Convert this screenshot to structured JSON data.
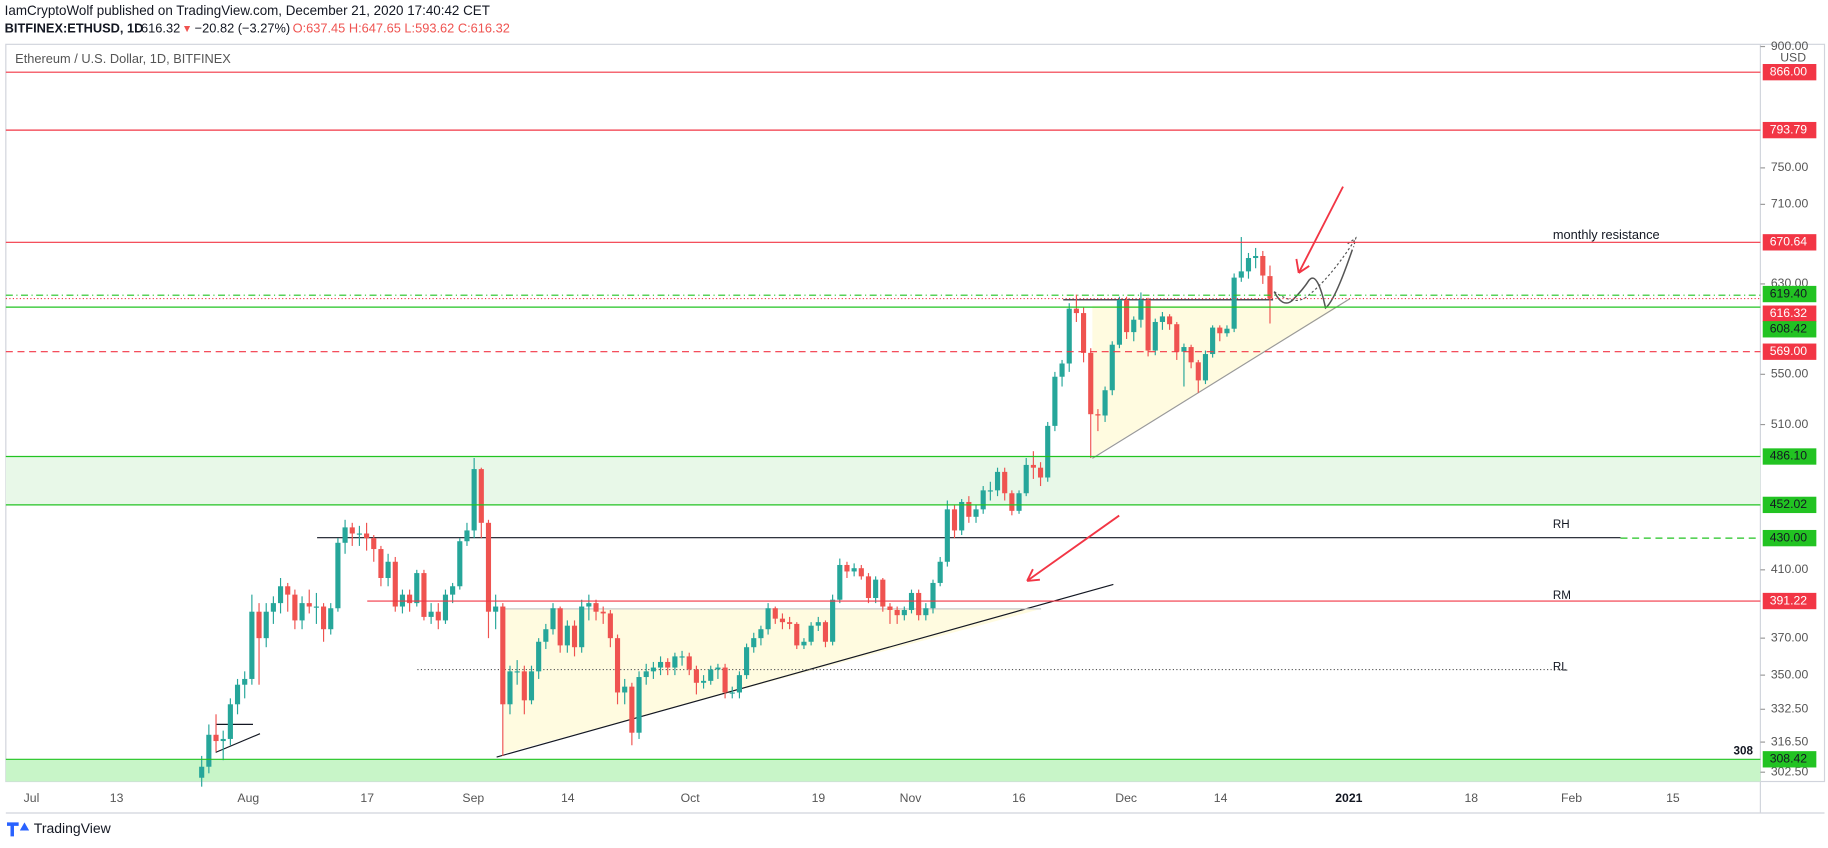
{
  "header": {
    "line1": "IamCryptoWolf published on TradingView.com, December 21, 2020 17:40:42 CET",
    "symbol": "BITFINEX:ETHUSD, 1D",
    "price": "616.32",
    "arrow": "▼",
    "change": "−20.82 (−3.27%)",
    "ohlc": "O:637.45 H:647.65 L:593.62 C:616.32"
  },
  "footer": {
    "brand": "TradingView"
  },
  "chart_data": {
    "type": "candlestick",
    "title": "Ethereum / U.S. Dollar, 1D, BITFINEX",
    "currency": "USD",
    "log": true,
    "up_color": "#26a69a",
    "down_color": "#ef5350",
    "ylim": [
      298.3,
      903
    ],
    "yticks": [
      {
        "value": 900,
        "label": "900.00"
      },
      {
        "value": 750,
        "label": "750.00"
      },
      {
        "value": 710,
        "label": "710.00"
      },
      {
        "value": 630,
        "label": "630.00"
      },
      {
        "value": 550,
        "label": "550.00"
      },
      {
        "value": 510,
        "label": "510.00"
      },
      {
        "value": 410,
        "label": "410.00"
      },
      {
        "value": 370,
        "label": "370.00"
      },
      {
        "value": 350,
        "label": "350.00"
      },
      {
        "value": 332.5,
        "label": "332.50"
      },
      {
        "value": 316.5,
        "label": "316.50"
      },
      {
        "value": 302.5,
        "label": "302.50"
      }
    ],
    "xticks": [
      "Jul",
      "13",
      "Aug",
      "17",
      "Sep",
      "14",
      "Oct",
      "19",
      "Nov",
      "16",
      "Dec",
      "14",
      "2021",
      "18",
      "Feb",
      "15"
    ],
    "levels": [
      {
        "value": 866,
        "label": "866.00",
        "color": "#f23645",
        "style": "solid"
      },
      {
        "value": 793.79,
        "label": "793.79",
        "color": "#f23645",
        "style": "solid"
      },
      {
        "value": 670.64,
        "label": "670.64",
        "color": "#f23645",
        "style": "solid"
      },
      {
        "value": 619.4,
        "label": "619.40",
        "color": "#22c322",
        "style": "dashdot"
      },
      {
        "value": 616.32,
        "label": "616.32",
        "color": "#f23645",
        "style": "dotted"
      },
      {
        "value": 608.42,
        "label": "608.42",
        "color": "#22c322",
        "style": "solid"
      },
      {
        "value": 569,
        "label": "569.00",
        "color": "#f23645",
        "style": "dashed"
      },
      {
        "value": 486.1,
        "label": "486.10",
        "color": "#22c322",
        "style": "solid"
      },
      {
        "value": 452.02,
        "label": "452.02",
        "color": "#22c322",
        "style": "solid"
      },
      {
        "value": 430,
        "label": "430.00",
        "color": "#22c322",
        "style": "dashed"
      },
      {
        "value": 391.22,
        "label": "391.22",
        "color": "#f23645",
        "style": "solid"
      },
      {
        "value": 308.42,
        "label": "308.42",
        "color": "#22c322",
        "style": "solid"
      }
    ],
    "annotations": [
      "monthly resistance",
      "RH",
      "RM",
      "RL",
      "308"
    ],
    "ohlc": [
      [
        300,
        310,
        296,
        305
      ],
      [
        305,
        325,
        302,
        320
      ],
      [
        320,
        330,
        312,
        317
      ],
      [
        317,
        322,
        308,
        318
      ],
      [
        318,
        338,
        315,
        335
      ],
      [
        335,
        348,
        330,
        345
      ],
      [
        345,
        352,
        338,
        348
      ],
      [
        348,
        395,
        345,
        385
      ],
      [
        385,
        390,
        345,
        370
      ],
      [
        370,
        390,
        365,
        385
      ],
      [
        385,
        394,
        378,
        390
      ],
      [
        390,
        405,
        384,
        400
      ],
      [
        400,
        402,
        385,
        395
      ],
      [
        395,
        398,
        375,
        380
      ],
      [
        380,
        394,
        375,
        390
      ],
      [
        390,
        398,
        384,
        388
      ],
      [
        388,
        396,
        378,
        388
      ],
      [
        388,
        390,
        368,
        375
      ],
      [
        375,
        390,
        372,
        387
      ],
      [
        387,
        430,
        385,
        427
      ],
      [
        427,
        442,
        420,
        437
      ],
      [
        437,
        440,
        425,
        433
      ],
      [
        433,
        438,
        425,
        433
      ],
      [
        433,
        440,
        422,
        430
      ],
      [
        430,
        432,
        415,
        423
      ],
      [
        423,
        425,
        400,
        405
      ],
      [
        405,
        420,
        400,
        415
      ],
      [
        415,
        418,
        385,
        388
      ],
      [
        388,
        398,
        384,
        395
      ],
      [
        395,
        398,
        385,
        390
      ],
      [
        390,
        410,
        388,
        408
      ],
      [
        408,
        410,
        380,
        382
      ],
      [
        382,
        390,
        378,
        385
      ],
      [
        385,
        390,
        375,
        380
      ],
      [
        380,
        398,
        378,
        395
      ],
      [
        395,
        402,
        390,
        400
      ],
      [
        400,
        430,
        398,
        428
      ],
      [
        428,
        440,
        425,
        435
      ],
      [
        435,
        485,
        430,
        477
      ],
      [
        477,
        478,
        430,
        440
      ],
      [
        440,
        442,
        370,
        385
      ],
      [
        385,
        395,
        375,
        388
      ],
      [
        388,
        390,
        310,
        335
      ],
      [
        335,
        355,
        330,
        352
      ],
      [
        352,
        358,
        345,
        352
      ],
      [
        352,
        355,
        330,
        337
      ],
      [
        337,
        355,
        335,
        352
      ],
      [
        352,
        370,
        348,
        368
      ],
      [
        368,
        378,
        364,
        375
      ],
      [
        375,
        390,
        372,
        387
      ],
      [
        387,
        388,
        362,
        366
      ],
      [
        366,
        380,
        362,
        377
      ],
      [
        377,
        380,
        360,
        365
      ],
      [
        365,
        392,
        362,
        388
      ],
      [
        388,
        395,
        380,
        390
      ],
      [
        390,
        392,
        380,
        385
      ],
      [
        385,
        388,
        378,
        384
      ],
      [
        384,
        386,
        365,
        370
      ],
      [
        370,
        372,
        335,
        341
      ],
      [
        341,
        348,
        335,
        344
      ],
      [
        344,
        346,
        315,
        321
      ],
      [
        321,
        352,
        318,
        349
      ],
      [
        349,
        356,
        345,
        352
      ],
      [
        352,
        357,
        348,
        354
      ],
      [
        354,
        360,
        350,
        357
      ],
      [
        357,
        359,
        350,
        354
      ],
      [
        354,
        362,
        350,
        360
      ],
      [
        360,
        363,
        355,
        360
      ],
      [
        360,
        362,
        350,
        353
      ],
      [
        353,
        355,
        340,
        346
      ],
      [
        346,
        350,
        343,
        347
      ],
      [
        347,
        355,
        345,
        353
      ],
      [
        353,
        356,
        348,
        354
      ],
      [
        354,
        356,
        338,
        341
      ],
      [
        341,
        344,
        338,
        341
      ],
      [
        341,
        352,
        338,
        350
      ],
      [
        350,
        367,
        348,
        365
      ],
      [
        365,
        373,
        362,
        370
      ],
      [
        370,
        377,
        366,
        375
      ],
      [
        375,
        390,
        372,
        387
      ],
      [
        387,
        388,
        378,
        381
      ],
      [
        381,
        384,
        375,
        379
      ],
      [
        379,
        382,
        375,
        378
      ],
      [
        378,
        379,
        364,
        366
      ],
      [
        366,
        370,
        364,
        368
      ],
      [
        368,
        379,
        366,
        377
      ],
      [
        377,
        382,
        374,
        379
      ],
      [
        379,
        380,
        365,
        368
      ],
      [
        368,
        395,
        366,
        392
      ],
      [
        392,
        417,
        390,
        413
      ],
      [
        413,
        415,
        405,
        409
      ],
      [
        409,
        414,
        406,
        411
      ],
      [
        411,
        413,
        404,
        406
      ],
      [
        406,
        408,
        390,
        393
      ],
      [
        393,
        406,
        390,
        404
      ],
      [
        404,
        405,
        385,
        388
      ],
      [
        388,
        390,
        378,
        386
      ],
      [
        386,
        388,
        378,
        383
      ],
      [
        383,
        388,
        380,
        386
      ],
      [
        386,
        398,
        384,
        396
      ],
      [
        396,
        398,
        380,
        383
      ],
      [
        383,
        390,
        380,
        387
      ],
      [
        387,
        404,
        384,
        402
      ],
      [
        402,
        418,
        400,
        415
      ],
      [
        415,
        455,
        412,
        449
      ],
      [
        449,
        452,
        430,
        435
      ],
      [
        435,
        456,
        432,
        454
      ],
      [
        454,
        458,
        440,
        444
      ],
      [
        444,
        452,
        440,
        449
      ],
      [
        449,
        465,
        446,
        462
      ],
      [
        462,
        468,
        455,
        462
      ],
      [
        462,
        478,
        458,
        475
      ],
      [
        475,
        478,
        455,
        460
      ],
      [
        460,
        462,
        445,
        448
      ],
      [
        448,
        462,
        446,
        460
      ],
      [
        460,
        485,
        458,
        480
      ],
      [
        480,
        490,
        470,
        478
      ],
      [
        478,
        482,
        465,
        471
      ],
      [
        471,
        512,
        468,
        509
      ],
      [
        509,
        552,
        505,
        548
      ],
      [
        548,
        562,
        540,
        559
      ],
      [
        559,
        612,
        552,
        607
      ],
      [
        607,
        620,
        595,
        603
      ],
      [
        603,
        608,
        560,
        568
      ],
      [
        568,
        572,
        485,
        518
      ],
      [
        518,
        522,
        505,
        517
      ],
      [
        517,
        540,
        512,
        537
      ],
      [
        537,
        578,
        533,
        575
      ],
      [
        575,
        618,
        572,
        615
      ],
      [
        615,
        618,
        580,
        586
      ],
      [
        586,
        600,
        578,
        597
      ],
      [
        597,
        622,
        590,
        615
      ],
      [
        615,
        617,
        565,
        570
      ],
      [
        570,
        598,
        566,
        595
      ],
      [
        595,
        604,
        588,
        600
      ],
      [
        600,
        602,
        588,
        593
      ],
      [
        593,
        595,
        562,
        569
      ],
      [
        569,
        576,
        540,
        573
      ],
      [
        573,
        575,
        555,
        560
      ],
      [
        560,
        562,
        535,
        545
      ],
      [
        545,
        570,
        542,
        567
      ],
      [
        567,
        592,
        564,
        590
      ],
      [
        590,
        592,
        578,
        585
      ],
      [
        585,
        592,
        582,
        589
      ],
      [
        589,
        640,
        586,
        636
      ],
      [
        636,
        676,
        632,
        642
      ],
      [
        642,
        660,
        635,
        655
      ],
      [
        655,
        665,
        645,
        657
      ],
      [
        657,
        662,
        630,
        638
      ],
      [
        637.45,
        647.65,
        593.62,
        616.32
      ]
    ]
  }
}
